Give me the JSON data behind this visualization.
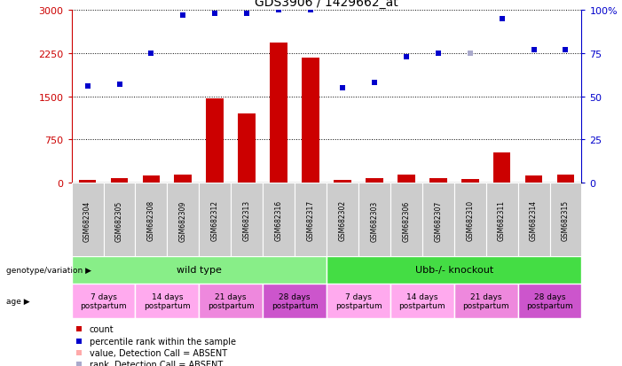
{
  "title": "GDS3906 / 1429662_at",
  "samples": [
    "GSM682304",
    "GSM682305",
    "GSM682308",
    "GSM682309",
    "GSM682312",
    "GSM682313",
    "GSM682316",
    "GSM682317",
    "GSM682302",
    "GSM682303",
    "GSM682306",
    "GSM682307",
    "GSM682310",
    "GSM682311",
    "GSM682314",
    "GSM682315"
  ],
  "bar_values": [
    50,
    70,
    120,
    145,
    1460,
    1200,
    2430,
    2170,
    45,
    80,
    135,
    80,
    65,
    520,
    130,
    140
  ],
  "bar_absent": [
    false,
    false,
    false,
    false,
    false,
    false,
    false,
    false,
    false,
    false,
    false,
    false,
    false,
    false,
    false,
    false
  ],
  "scatter_values": [
    56,
    57,
    75,
    97,
    98,
    98,
    100,
    100,
    55,
    58,
    73,
    75,
    75,
    95,
    77,
    77
  ],
  "scatter_absent": [
    false,
    false,
    false,
    false,
    false,
    false,
    false,
    false,
    false,
    false,
    false,
    false,
    true,
    false,
    false,
    false
  ],
  "ylim_left": [
    0,
    3000
  ],
  "ylim_right": [
    0,
    100
  ],
  "yticks_left": [
    0,
    750,
    1500,
    2250,
    3000
  ],
  "yticks_right": [
    0,
    25,
    50,
    75,
    100
  ],
  "ytick_labels_left": [
    "0",
    "750",
    "1500",
    "2250",
    "3000"
  ],
  "ytick_labels_right": [
    "0",
    "25",
    "50",
    "75",
    "100%"
  ],
  "bar_color": "#cc0000",
  "bar_absent_color": "#ffaaaa",
  "scatter_color": "#0000cc",
  "scatter_absent_color": "#aaaacc",
  "bg_color": "#ffffff",
  "genotype_groups": [
    {
      "label": "wild type",
      "start": 0,
      "end": 7,
      "color": "#88ee88"
    },
    {
      "label": "Ubb-/- knockout",
      "start": 8,
      "end": 15,
      "color": "#44dd44"
    }
  ],
  "age_groups": [
    {
      "label": "7 days\npostpartum",
      "start": 0,
      "end": 1,
      "color": "#ffaaee"
    },
    {
      "label": "14 days\npostpartum",
      "start": 2,
      "end": 3,
      "color": "#ffaaee"
    },
    {
      "label": "21 days\npostpartum",
      "start": 4,
      "end": 5,
      "color": "#ee88dd"
    },
    {
      "label": "28 days\npostpartum",
      "start": 6,
      "end": 7,
      "color": "#cc55cc"
    },
    {
      "label": "7 days\npostpartum",
      "start": 8,
      "end": 9,
      "color": "#ffaaee"
    },
    {
      "label": "14 days\npostpartum",
      "start": 10,
      "end": 11,
      "color": "#ffaaee"
    },
    {
      "label": "21 days\npostpartum",
      "start": 12,
      "end": 13,
      "color": "#ee88dd"
    },
    {
      "label": "28 days\npostpartum",
      "start": 14,
      "end": 15,
      "color": "#cc55cc"
    }
  ],
  "legend_items": [
    {
      "label": "count",
      "color": "#cc0000",
      "marker": "s"
    },
    {
      "label": "percentile rank within the sample",
      "color": "#0000cc",
      "marker": "s"
    },
    {
      "label": "value, Detection Call = ABSENT",
      "color": "#ffaaaa",
      "marker": "s"
    },
    {
      "label": "rank, Detection Call = ABSENT",
      "color": "#aaaacc",
      "marker": "s"
    }
  ],
  "sample_bg_color": "#cccccc",
  "left_label_color": "#888888"
}
